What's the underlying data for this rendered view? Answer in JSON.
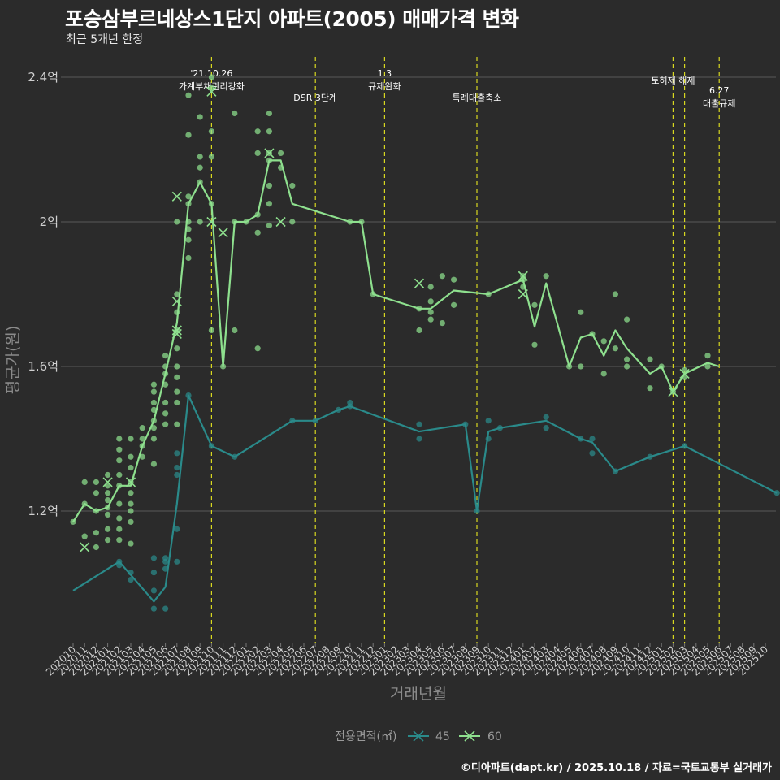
{
  "title": "포승삼부르네상스1단지 아파트(2005) 매매가격 변화",
  "subtitle": "최근 5개년 한정",
  "footer": "©디아파트(dapt.kr) / 2025.10.18 / 자료=국토교통부 실거래가",
  "colors": {
    "background": "#2b2b2b",
    "grid": "#5a5a5a",
    "series45": "#2a8a8a",
    "series60": "#8ee08e",
    "event_line": "#d8d820"
  },
  "chart_data": {
    "type": "line",
    "xlabel": "거래년월",
    "ylabel": "평균가(원)",
    "ylim": [
      0.9,
      2.45
    ],
    "yticks": [
      1.2,
      1.6,
      2.0,
      2.4
    ],
    "ytick_labels": [
      "1.2억",
      "1.6억",
      "2억",
      "2.4억"
    ],
    "categories": [
      "202010",
      "202011",
      "202012",
      "202101",
      "202102",
      "202103",
      "202104",
      "202105",
      "202106",
      "202107",
      "202108",
      "202109",
      "202110",
      "202111",
      "202112",
      "202201",
      "202202",
      "202203",
      "202204",
      "202205",
      "202206",
      "202207",
      "202208",
      "202209",
      "202210",
      "202211",
      "202212",
      "202301",
      "202302",
      "202303",
      "202304",
      "202305",
      "202306",
      "202307",
      "202308",
      "202309",
      "202310",
      "202311",
      "202312",
      "202401",
      "202402",
      "202403",
      "202404",
      "202405",
      "202406",
      "202407",
      "202408",
      "202409",
      "202410",
      "202411",
      "202412",
      "202501",
      "202502",
      "202503",
      "202504",
      "202505",
      "202506",
      "202507",
      "202508",
      "202509",
      "202510"
    ],
    "legend_title": "전용면적(㎡)",
    "series": [
      {
        "name": "45",
        "color": "#2a8a8a",
        "line": [
          [
            0,
            0.98
          ],
          [
            4,
            1.06
          ],
          [
            7,
            0.95
          ],
          [
            8,
            0.99
          ],
          [
            9,
            1.22
          ],
          [
            10,
            1.52
          ],
          [
            12,
            1.38
          ],
          [
            14,
            1.35
          ],
          [
            19,
            1.45
          ],
          [
            21,
            1.45
          ],
          [
            23,
            1.48
          ],
          [
            24,
            1.49
          ],
          [
            30,
            1.42
          ],
          [
            34,
            1.44
          ],
          [
            35,
            1.2
          ],
          [
            36,
            1.42
          ],
          [
            37,
            1.43
          ],
          [
            41,
            1.45
          ],
          [
            44,
            1.4
          ],
          [
            45,
            1.39
          ],
          [
            47,
            1.31
          ],
          [
            50,
            1.35
          ],
          [
            53,
            1.38
          ],
          [
            61,
            1.25
          ]
        ],
        "points": [
          [
            4,
            1.06
          ],
          [
            4,
            1.05
          ],
          [
            5,
            1.01
          ],
          [
            5,
            1.03
          ],
          [
            7,
            0.93
          ],
          [
            7,
            0.98
          ],
          [
            7,
            1.03
          ],
          [
            7,
            1.07
          ],
          [
            8,
            0.93
          ],
          [
            8,
            1.06
          ],
          [
            8,
            1.07
          ],
          [
            8,
            1.04
          ],
          [
            9,
            1.06
          ],
          [
            9,
            1.15
          ],
          [
            9,
            1.3
          ],
          [
            9,
            1.32
          ],
          [
            9,
            1.36
          ],
          [
            10,
            1.52
          ],
          [
            12,
            1.38
          ],
          [
            14,
            1.35
          ],
          [
            19,
            1.45
          ],
          [
            21,
            1.45
          ],
          [
            23,
            1.48
          ],
          [
            24,
            1.49
          ],
          [
            24,
            1.5
          ],
          [
            30,
            1.44
          ],
          [
            30,
            1.4
          ],
          [
            34,
            1.44
          ],
          [
            35,
            1.2
          ],
          [
            36,
            1.45
          ],
          [
            36,
            1.4
          ],
          [
            37,
            1.43
          ],
          [
            41,
            1.46
          ],
          [
            41,
            1.43
          ],
          [
            44,
            1.4
          ],
          [
            45,
            1.4
          ],
          [
            45,
            1.36
          ],
          [
            47,
            1.31
          ],
          [
            50,
            1.35
          ],
          [
            53,
            1.38
          ],
          [
            61,
            1.25
          ]
        ],
        "crosses": []
      },
      {
        "name": "60",
        "color": "#8ee08e",
        "line": [
          [
            0,
            1.17
          ],
          [
            1,
            1.22
          ],
          [
            2,
            1.2
          ],
          [
            3,
            1.21
          ],
          [
            4,
            1.27
          ],
          [
            5,
            1.27
          ],
          [
            6,
            1.38
          ],
          [
            7,
            1.45
          ],
          [
            8,
            1.58
          ],
          [
            9,
            1.72
          ],
          [
            10,
            2.05
          ],
          [
            11,
            2.11
          ],
          [
            12,
            2.05
          ],
          [
            13,
            1.6
          ],
          [
            14,
            2.0
          ],
          [
            15,
            2.0
          ],
          [
            16,
            2.02
          ],
          [
            17,
            2.17
          ],
          [
            18,
            2.17
          ],
          [
            19,
            2.05
          ],
          [
            24,
            2.0
          ],
          [
            25,
            2.0
          ],
          [
            26,
            1.8
          ],
          [
            30,
            1.76
          ],
          [
            31,
            1.76
          ],
          [
            33,
            1.81
          ],
          [
            36,
            1.8
          ],
          [
            39,
            1.84
          ],
          [
            40,
            1.71
          ],
          [
            41,
            1.83
          ],
          [
            43,
            1.6
          ],
          [
            44,
            1.68
          ],
          [
            45,
            1.69
          ],
          [
            46,
            1.63
          ],
          [
            47,
            1.7
          ],
          [
            48,
            1.65
          ],
          [
            50,
            1.58
          ],
          [
            51,
            1.6
          ],
          [
            52,
            1.53
          ],
          [
            53,
            1.58
          ],
          [
            55,
            1.61
          ],
          [
            56,
            1.6
          ]
        ],
        "points": [
          [
            0,
            1.17
          ],
          [
            1,
            1.22
          ],
          [
            1,
            1.28
          ],
          [
            1,
            1.13
          ],
          [
            2,
            1.2
          ],
          [
            2,
            1.25
          ],
          [
            2,
            1.28
          ],
          [
            2,
            1.1
          ],
          [
            2,
            1.14
          ],
          [
            3,
            1.21
          ],
          [
            3,
            1.25
          ],
          [
            3,
            1.27
          ],
          [
            3,
            1.3
          ],
          [
            3,
            1.23
          ],
          [
            3,
            1.19
          ],
          [
            3,
            1.15
          ],
          [
            3,
            1.12
          ],
          [
            4,
            1.27
          ],
          [
            4,
            1.3
          ],
          [
            4,
            1.34
          ],
          [
            4,
            1.37
          ],
          [
            4,
            1.4
          ],
          [
            4,
            1.22
          ],
          [
            4,
            1.18
          ],
          [
            4,
            1.15
          ],
          [
            4,
            1.12
          ],
          [
            5,
            1.28
          ],
          [
            5,
            1.32
          ],
          [
            5,
            1.35
          ],
          [
            5,
            1.4
          ],
          [
            5,
            1.25
          ],
          [
            5,
            1.2
          ],
          [
            5,
            1.22
          ],
          [
            5,
            1.17
          ],
          [
            5,
            1.11
          ],
          [
            6,
            1.35
          ],
          [
            6,
            1.38
          ],
          [
            6,
            1.4
          ],
          [
            6,
            1.43
          ],
          [
            7,
            1.45
          ],
          [
            7,
            1.48
          ],
          [
            7,
            1.5
          ],
          [
            7,
            1.53
          ],
          [
            7,
            1.55
          ],
          [
            7,
            1.43
          ],
          [
            7,
            1.4
          ],
          [
            7,
            1.33
          ],
          [
            8,
            1.55
          ],
          [
            8,
            1.58
          ],
          [
            8,
            1.6
          ],
          [
            8,
            1.63
          ],
          [
            8,
            1.5
          ],
          [
            8,
            1.47
          ],
          [
            8,
            1.44
          ],
          [
            9,
            1.6
          ],
          [
            9,
            1.65
          ],
          [
            9,
            1.7
          ],
          [
            9,
            1.75
          ],
          [
            9,
            1.8
          ],
          [
            9,
            1.57
          ],
          [
            9,
            1.53
          ],
          [
            9,
            1.5
          ],
          [
            9,
            1.44
          ],
          [
            9,
            2.0
          ],
          [
            10,
            2.07
          ],
          [
            10,
            2.05
          ],
          [
            10,
            2.0
          ],
          [
            10,
            1.98
          ],
          [
            10,
            1.95
          ],
          [
            10,
            1.9
          ],
          [
            10,
            2.35
          ],
          [
            10,
            2.24
          ],
          [
            11,
            2.11
          ],
          [
            11,
            2.15
          ],
          [
            11,
            2.18
          ],
          [
            11,
            2.29
          ],
          [
            11,
            2.0
          ],
          [
            12,
            2.05
          ],
          [
            12,
            2.18
          ],
          [
            12,
            2.25
          ],
          [
            12,
            2.4
          ],
          [
            12,
            2.37
          ],
          [
            12,
            1.7
          ],
          [
            13,
            1.6
          ],
          [
            14,
            2.0
          ],
          [
            14,
            2.3
          ],
          [
            14,
            1.7
          ],
          [
            15,
            2.0
          ],
          [
            16,
            2.02
          ],
          [
            16,
            2.19
          ],
          [
            16,
            2.25
          ],
          [
            16,
            1.97
          ],
          [
            16,
            1.65
          ],
          [
            17,
            2.17
          ],
          [
            17,
            2.19
          ],
          [
            17,
            2.25
          ],
          [
            17,
            2.3
          ],
          [
            17,
            2.1
          ],
          [
            17,
            2.05
          ],
          [
            17,
            1.99
          ],
          [
            18,
            2.19
          ],
          [
            18,
            2.15
          ],
          [
            19,
            2.1
          ],
          [
            19,
            2.0
          ],
          [
            24,
            2.0
          ],
          [
            25,
            2.0
          ],
          [
            26,
            1.8
          ],
          [
            30,
            1.76
          ],
          [
            30,
            1.7
          ],
          [
            31,
            1.78
          ],
          [
            31,
            1.82
          ],
          [
            31,
            1.75
          ],
          [
            31,
            1.73
          ],
          [
            32,
            1.85
          ],
          [
            32,
            1.72
          ],
          [
            33,
            1.84
          ],
          [
            33,
            1.77
          ],
          [
            36,
            1.8
          ],
          [
            39,
            1.84
          ],
          [
            39,
            1.82
          ],
          [
            39,
            1.85
          ],
          [
            40,
            1.77
          ],
          [
            40,
            1.66
          ],
          [
            41,
            1.85
          ],
          [
            43,
            1.6
          ],
          [
            44,
            1.6
          ],
          [
            44,
            1.75
          ],
          [
            45,
            1.69
          ],
          [
            46,
            1.67
          ],
          [
            46,
            1.58
          ],
          [
            47,
            1.8
          ],
          [
            47,
            1.65
          ],
          [
            48,
            1.73
          ],
          [
            48,
            1.62
          ],
          [
            48,
            1.6
          ],
          [
            50,
            1.62
          ],
          [
            50,
            1.54
          ],
          [
            51,
            1.6
          ],
          [
            52,
            1.53
          ],
          [
            53,
            1.59
          ],
          [
            53,
            1.57
          ],
          [
            55,
            1.6
          ],
          [
            55,
            1.63
          ]
        ],
        "crosses": [
          [
            1,
            1.1
          ],
          [
            3,
            1.28
          ],
          [
            5,
            1.28
          ],
          [
            9,
            2.07
          ],
          [
            9,
            1.78
          ],
          [
            9,
            1.7
          ],
          [
            9,
            1.69
          ],
          [
            12,
            2.0
          ],
          [
            12,
            2.36
          ],
          [
            13,
            1.97
          ],
          [
            17,
            2.19
          ],
          [
            18,
            2.0
          ],
          [
            30,
            1.83
          ],
          [
            39,
            1.85
          ],
          [
            39,
            1.8
          ],
          [
            52,
            1.53
          ],
          [
            53,
            1.58
          ]
        ]
      }
    ],
    "events": [
      {
        "x": 12,
        "label": "'21.10.26\n가계부채관리강화",
        "level": "top"
      },
      {
        "x": 21,
        "label": "DSR 3단계",
        "level": "low"
      },
      {
        "x": 27,
        "label": "1.3\n규제완화",
        "level": "top"
      },
      {
        "x": 35,
        "label": "특례대출축소",
        "level": "low"
      },
      {
        "x": 52,
        "label": "토허제 해제",
        "level": "mid"
      },
      {
        "x": 53,
        "label": "",
        "level": "none"
      },
      {
        "x": 56,
        "label": "6.27\n대출규제",
        "level": "low2"
      }
    ]
  }
}
